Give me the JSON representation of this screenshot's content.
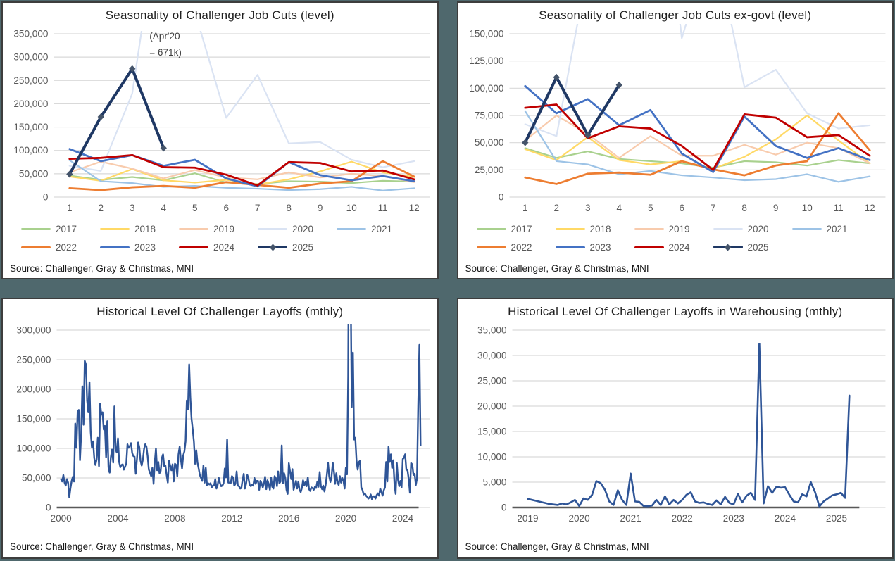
{
  "style": {
    "background": "#4f686d",
    "panel_border": "#3d3d3d",
    "grid_color": "#d9d9d9",
    "axis_text_color": "#595959",
    "title_color": "#1f1f1f",
    "dark_axis_color": "#595959",
    "marker_color": "#44546a",
    "annotation_color": "#3f3f3f"
  },
  "source_label": "Source: Challenger, Gray & Christmas, MNI",
  "chart_data": [
    {
      "type": "line",
      "title": "Seasonality of Challenger Job Cuts (level)",
      "source": "Source: Challenger, Gray & Christmas, MNI",
      "x_type": "month",
      "x_ticks": [
        1,
        2,
        3,
        4,
        5,
        6,
        7,
        8,
        9,
        10,
        11,
        12
      ],
      "ylim": [
        0,
        350000
      ],
      "y_step": 50000,
      "value_unit": 1000,
      "clip_top": 10,
      "legend": true,
      "legend_position": "bottom",
      "grid": true,
      "annotation": {
        "lines": [
          "(Apr'20",
          "= 671k)"
        ],
        "month": 3.55,
        "values_k": [
          338,
          303
        ]
      },
      "series": [
        {
          "name": "2017",
          "color": "#a9d18e",
          "lw": 2.2,
          "values": [
            46,
            37,
            43,
            36,
            51,
            31,
            28,
            34,
            33,
            30,
            35,
            33
          ]
        },
        {
          "name": "2018",
          "color": "#ffd966",
          "lw": 2.2,
          "values": [
            44,
            35,
            60,
            36,
            31,
            37,
            27,
            38,
            55,
            76,
            53,
            43
          ]
        },
        {
          "name": "2019",
          "color": "#f8cbad",
          "lw": 2.2,
          "values": [
            53,
            76,
            61,
            40,
            58,
            42,
            38,
            53,
            42,
            50,
            45,
            32
          ]
        },
        {
          "name": "2020",
          "color": "#dae3f3",
          "lw": 2.2,
          "values": [
            67,
            56,
            222,
            671,
            397,
            170,
            262,
            115,
            118,
            80,
            64,
            77
          ]
        },
        {
          "name": "2021",
          "color": "#9dc3e6",
          "lw": 2.2,
          "values": [
            79,
            34,
            30,
            22,
            24,
            20,
            18,
            15,
            17,
            22,
            14,
            19
          ]
        },
        {
          "name": "2022",
          "color": "#ed7d31",
          "lw": 2.8,
          "values": [
            19,
            15,
            21,
            24,
            20,
            32,
            26,
            20,
            29,
            34,
            77,
            44
          ]
        },
        {
          "name": "2023",
          "color": "#4472c4",
          "lw": 2.8,
          "values": [
            103,
            77,
            90,
            67,
            80,
            40,
            23,
            75,
            47,
            36,
            45,
            34
          ]
        },
        {
          "name": "2024",
          "color": "#c00000",
          "lw": 2.8,
          "values": [
            82,
            84,
            90,
            64,
            63,
            48,
            25,
            75,
            73,
            55,
            57,
            38
          ]
        },
        {
          "name": "2025",
          "color": "#1f3864",
          "lw": 4,
          "marker": "diamond",
          "values": [
            49,
            172,
            275,
            105
          ]
        }
      ]
    },
    {
      "type": "line",
      "title": "Seasonality of Challenger Job Cuts ex-govt (level)",
      "source": "Source: Challenger, Gray & Christmas, MNI",
      "x_type": "month",
      "x_ticks": [
        1,
        2,
        3,
        4,
        5,
        6,
        7,
        8,
        9,
        10,
        11,
        12
      ],
      "ylim": [
        0,
        150000
      ],
      "y_step": 25000,
      "value_unit": 1000,
      "clip_top": 0,
      "legend": true,
      "legend_position": "bottom",
      "grid": true,
      "series": [
        {
          "name": "2017",
          "color": "#a9d18e",
          "lw": 2.2,
          "values": [
            45,
            36,
            42,
            35,
            33,
            31,
            27,
            33,
            32,
            29,
            34,
            31
          ]
        },
        {
          "name": "2018",
          "color": "#ffd966",
          "lw": 2.2,
          "values": [
            44,
            34,
            55,
            34,
            30,
            33,
            26,
            37,
            53,
            75,
            52,
            31
          ]
        },
        {
          "name": "2019",
          "color": "#f8cbad",
          "lw": 2.2,
          "values": [
            52,
            75,
            58,
            36,
            56,
            38,
            38,
            48,
            39,
            50,
            45,
            31
          ]
        },
        {
          "name": "2020",
          "color": "#dae3f3",
          "lw": 2.2,
          "values": [
            67,
            56,
            210,
            660,
            390,
            146,
            240,
            101,
            117,
            77,
            63,
            66
          ]
        },
        {
          "name": "2021",
          "color": "#9dc3e6",
          "lw": 2.2,
          "values": [
            79,
            33,
            30,
            21,
            24,
            20,
            18,
            15.5,
            16.5,
            21,
            14,
            19
          ]
        },
        {
          "name": "2022",
          "color": "#ed7d31",
          "lw": 2.8,
          "values": [
            18,
            12,
            21.5,
            22.5,
            20.5,
            33,
            25.5,
            20,
            29,
            33,
            77,
            43
          ]
        },
        {
          "name": "2023",
          "color": "#4472c4",
          "lw": 2.8,
          "values": [
            102,
            77,
            90,
            66,
            80,
            40,
            23,
            74,
            47,
            36,
            45,
            34
          ]
        },
        {
          "name": "2024",
          "color": "#c00000",
          "lw": 2.8,
          "values": [
            82,
            85,
            54,
            65,
            63,
            47,
            25,
            76,
            73,
            55,
            57,
            38
          ]
        },
        {
          "name": "2025",
          "color": "#1f3864",
          "lw": 4,
          "marker": "diamond",
          "values": [
            50,
            110,
            57,
            103
          ]
        }
      ]
    },
    {
      "type": "line",
      "title": "Historical Level Of Challenger Layoffs (mthly)",
      "source": "Source: Challenger, Gray & Christmas, MNI",
      "x_type": "year",
      "x_start": 2000.0,
      "x_range": [
        1999.7,
        2025.9
      ],
      "x_ticks": [
        2000,
        2004,
        2008,
        2012,
        2016,
        2020,
        2024
      ],
      "ylim": [
        0,
        300000
      ],
      "y_step": 50000,
      "value_unit": 1000,
      "clip_top": 6,
      "legend": false,
      "grid": true,
      "dark_axis_frac": 0.97,
      "series": [
        {
          "name": "Challenger layoffs",
          "color": "#2f5597",
          "lw": 2.4,
          "values": [
            48,
            44,
            55,
            42,
            37,
            48,
            42,
            17,
            33,
            45,
            52,
            44,
            142,
            101,
            162,
            165,
            80,
            124,
            205,
            140,
            248,
            242,
            181,
            161,
            212,
            128,
            102,
            112,
            84,
            72,
            81,
            118,
            70,
            176,
            157,
            161,
            132,
            138,
            85,
            146,
            68,
            59,
            85,
            98,
            76,
            171,
            99,
            93,
            117,
            77,
            68,
            72,
            73,
            64,
            69,
            74,
            107,
            101,
            104,
            109,
            92,
            87,
            86,
            57,
            82,
            110,
            102,
            79,
            71,
            81,
            99,
            107,
            103,
            87,
            64,
            59,
            53,
            67,
            40,
            76,
            100,
            63,
            77,
            58,
            62,
            84,
            90,
            70,
            71,
            55,
            42,
            79,
            71,
            63,
            73,
            44,
            74,
            72,
            53,
            90,
            103,
            81,
            66,
            88,
            95,
            112,
            181,
            166,
            242,
            186,
            150,
            132,
            111,
            74,
            97,
            76,
            66,
            55,
            50,
            45,
            71,
            42,
            67,
            38,
            41,
            39,
            41,
            34,
            37,
            37,
            48,
            32,
            38,
            50,
            41,
            36,
            37,
            41,
            66,
            51,
            115,
            42,
            42,
            41,
            53,
            51,
            37,
            40,
            61,
            37,
            36,
            32,
            33,
            47,
            57,
            32,
            40,
            55,
            49,
            38,
            36,
            39,
            37,
            50,
            40,
            45,
            45,
            30,
            45,
            41,
            34,
            40,
            52,
            31,
            46,
            40,
            30,
            51,
            35,
            32,
            53,
            50,
            36,
            61,
            41,
            44,
            105,
            41,
            58,
            50,
            30,
            23,
            75,
            61,
            48,
            65,
            30,
            38,
            45,
            32,
            44,
            30,
            26,
            33,
            46,
            37,
            43,
            36,
            51,
            31,
            28,
            34,
            33,
            30,
            35,
            33,
            44,
            35,
            60,
            36,
            31,
            37,
            27,
            38,
            55,
            76,
            53,
            43,
            53,
            76,
            61,
            40,
            58,
            42,
            38,
            53,
            42,
            50,
            45,
            32,
            67,
            56,
            222,
            671,
            397,
            170,
            262,
            115,
            118,
            80,
            64,
            77,
            79,
            34,
            30,
            22,
            24,
            20,
            18,
            15,
            17,
            22,
            14,
            19,
            19,
            15,
            21,
            24,
            20,
            32,
            26,
            20,
            29,
            34,
            77,
            44,
            103,
            77,
            90,
            67,
            80,
            40,
            23,
            75,
            47,
            36,
            45,
            34,
            82,
            84,
            90,
            64,
            63,
            48,
            25,
            75,
            73,
            55,
            57,
            38,
            49,
            172,
            275,
            105
          ]
        }
      ]
    },
    {
      "type": "line",
      "title": "Historical Level Of Challenger Layoffs in Warehousing (mthly)",
      "source": "Source: Challenger, Gray & Christmas, MNI",
      "x_type": "year",
      "x_start": 2019.0,
      "x_range": [
        2018.7,
        2025.95
      ],
      "x_ticks": [
        2019,
        2020,
        2021,
        2022,
        2023,
        2024,
        2025
      ],
      "ylim": [
        0,
        35000
      ],
      "y_step": 5000,
      "value_unit": 1000,
      "clip_top": 6,
      "legend": false,
      "grid": true,
      "dark_axis_frac": 0.93,
      "series": [
        {
          "name": "Warehousing layoffs",
          "color": "#2f5597",
          "lw": 2.6,
          "values": [
            1.7,
            1.5,
            1.3,
            1.1,
            0.9,
            0.7,
            0.6,
            0.5,
            0.8,
            0.6,
            1.0,
            1.5,
            0.3,
            1.8,
            1.5,
            2.5,
            5.2,
            4.8,
            3.5,
            1.2,
            0.5,
            3.4,
            1.5,
            0.5,
            6.7,
            1.2,
            1.1,
            0.3,
            0.25,
            0.4,
            1.5,
            0.5,
            2.2,
            0.6,
            1.5,
            0.8,
            1.5,
            2.5,
            3.0,
            1.2,
            0.9,
            1.0,
            0.7,
            0.5,
            1.4,
            0.6,
            2.1,
            0.9,
            0.6,
            2.7,
            1.0,
            2.3,
            2.9,
            1.5,
            32.3,
            0.8,
            4.2,
            2.9,
            4.1,
            3.9,
            4.0,
            2.5,
            1.2,
            1.0,
            2.6,
            2.2,
            5.0,
            3.0,
            0.2,
            1.2,
            1.8,
            2.4,
            2.6,
            2.9,
            1.9,
            22.1
          ]
        }
      ]
    }
  ]
}
